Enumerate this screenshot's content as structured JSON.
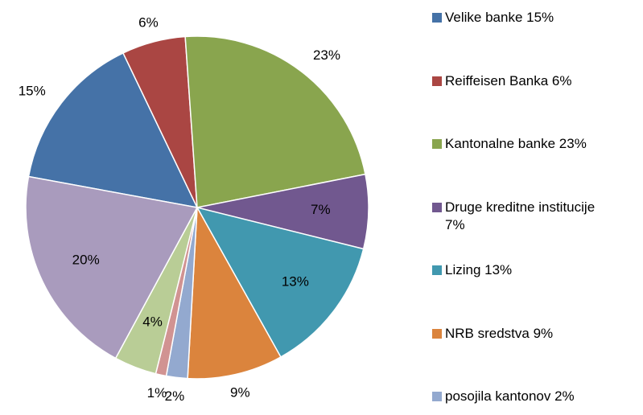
{
  "chart_data": {
    "type": "pie",
    "categories": [
      "Velike banke 15%",
      "Reiffeisen Banka 6%",
      "Kantonalne banke 23%",
      "Druge kreditne institucije 7%",
      "Lizing 13%",
      "NRB sredstva 9%",
      "posojila kantonov 2%",
      null,
      null,
      null
    ],
    "values": [
      15,
      6,
      23,
      7,
      13,
      9,
      2,
      1,
      4,
      20
    ],
    "value_labels": [
      "15%",
      "6%",
      "23%",
      "7%",
      "13%",
      "9%",
      "2%",
      "1%",
      "4%",
      "20%"
    ],
    "colors": [
      "#4572a7",
      "#aa4643",
      "#89a54e",
      "#71588f",
      "#4198af",
      "#db843d",
      "#93a9cf",
      "#d19392",
      "#b9cd96",
      "#a99bbd"
    ],
    "legend": "right"
  }
}
